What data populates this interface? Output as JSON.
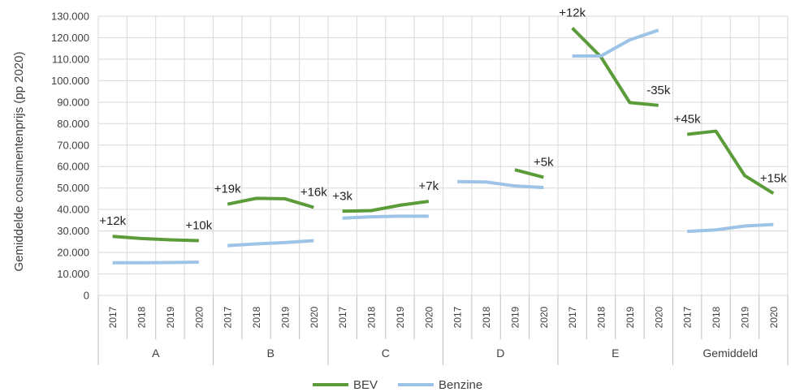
{
  "chart_data": {
    "type": "line",
    "title": "",
    "ylabel": "Gemiddelde consumentenprijs (pp 2020)",
    "xlabel": "",
    "ylim": [
      0,
      130000
    ],
    "y_ticks": [
      "0",
      "10.000",
      "20.000",
      "30.000",
      "40.000",
      "50.000",
      "60.000",
      "70.000",
      "80.000",
      "90.000",
      "100.000",
      "110.000",
      "120.000",
      "130.000"
    ],
    "y_tick_values": [
      0,
      10000,
      20000,
      30000,
      40000,
      50000,
      60000,
      70000,
      80000,
      90000,
      100000,
      110000,
      120000,
      130000
    ],
    "grid": true,
    "legend_position": "bottom",
    "groups": [
      {
        "label": "A",
        "years": [
          "2017",
          "2018",
          "2019",
          "2020"
        ],
        "BEV": [
          27500,
          26500,
          25900,
          25500
        ],
        "Benzine": [
          15200,
          15200,
          15300,
          15500
        ]
      },
      {
        "label": "B",
        "years": [
          "2017",
          "2018",
          "2019",
          "2020"
        ],
        "BEV": [
          42500,
          45200,
          45000,
          41000
        ],
        "Benzine": [
          23200,
          24000,
          24600,
          25500
        ]
      },
      {
        "label": "C",
        "years": [
          "2017",
          "2018",
          "2019",
          "2020"
        ],
        "BEV": [
          39200,
          39500,
          42000,
          43800
        ],
        "Benzine": [
          36000,
          36600,
          36900,
          36900
        ]
      },
      {
        "label": "D",
        "years": [
          "2017",
          "2018",
          "2019",
          "2020"
        ],
        "BEV": [
          null,
          null,
          58500,
          55000
        ],
        "Benzine": [
          53000,
          52800,
          51000,
          50200
        ]
      },
      {
        "label": "E",
        "years": [
          "2017",
          "2018",
          "2019",
          "2020"
        ],
        "BEV": [
          124500,
          111000,
          89800,
          88500
        ],
        "Benzine": [
          111500,
          111500,
          119000,
          123500
        ]
      },
      {
        "label": "Gemiddeld",
        "years": [
          "2017",
          "2018",
          "2019",
          "2020"
        ],
        "BEV": [
          75000,
          76500,
          55800,
          47500
        ],
        "Benzine": [
          29800,
          30500,
          32300,
          33000
        ]
      }
    ],
    "series": [
      {
        "name": "BEV",
        "color": "#5b9b3a"
      },
      {
        "name": "Benzine",
        "color": "#9dc3e6"
      }
    ],
    "annotations": [
      {
        "text": "+12k",
        "group": 0,
        "year_index": 0
      },
      {
        "text": "+10k",
        "group": 0,
        "year_index": 3
      },
      {
        "text": "+19k",
        "group": 1,
        "year_index": 0
      },
      {
        "text": "+16k",
        "group": 1,
        "year_index": 3
      },
      {
        "text": "+3k",
        "group": 2,
        "year_index": 0
      },
      {
        "text": "+7k",
        "group": 2,
        "year_index": 3
      },
      {
        "text": "+5k",
        "group": 3,
        "year_index": 3
      },
      {
        "text": "+12k",
        "group": 4,
        "year_index": 0
      },
      {
        "text": "-35k",
        "group": 4,
        "year_index": 3
      },
      {
        "text": "+45k",
        "group": 5,
        "year_index": 0
      },
      {
        "text": "+15k",
        "group": 5,
        "year_index": 3
      }
    ]
  }
}
